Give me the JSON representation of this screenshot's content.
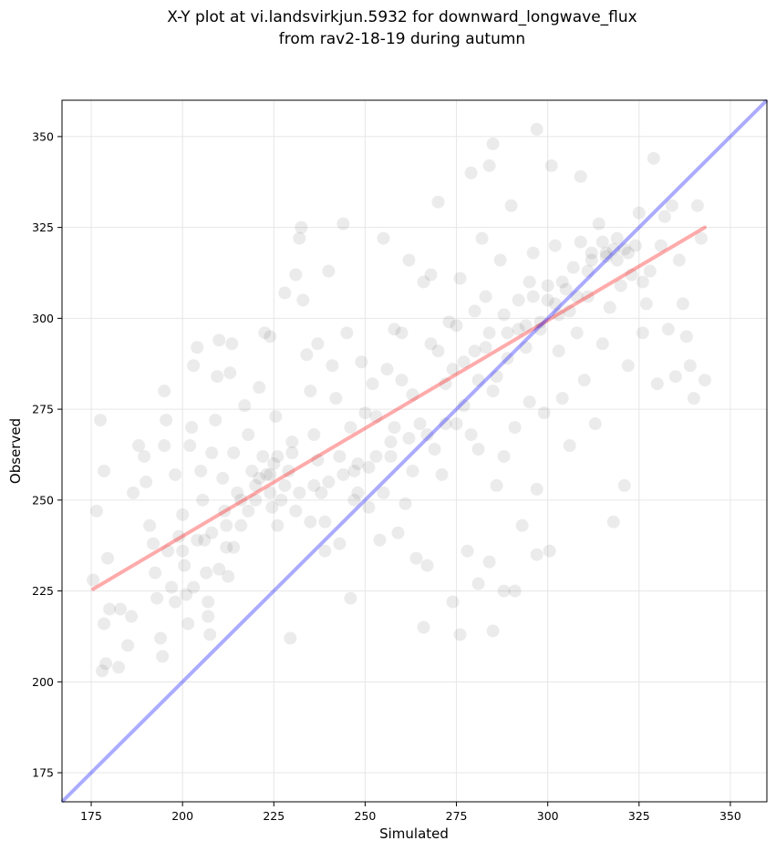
{
  "chart_data": {
    "type": "scatter",
    "title_lines": [
      "X-Y plot at vi.landsvirkjun.5932 for downward_longwave_flux",
      "from rav2-18-19 during autumn"
    ],
    "xlabel": "Simulated",
    "ylabel": "Observed",
    "xlim": [
      167,
      360
    ],
    "ylim": [
      167,
      360
    ],
    "xticks": [
      175,
      200,
      225,
      250,
      275,
      300,
      325,
      350
    ],
    "yticks": [
      175,
      200,
      225,
      250,
      275,
      300,
      325,
      350
    ],
    "grid": true,
    "point_color": "#000000",
    "point_alpha": 0.08,
    "identity_line": {
      "color": "#0000ff",
      "alpha": 0.33,
      "from": [
        167,
        167
      ],
      "to": [
        360,
        360
      ]
    },
    "regression_line": {
      "color": "#ff0000",
      "alpha": 0.33,
      "from": [
        175.5,
        225.5
      ],
      "to": [
        343,
        325
      ]
    },
    "points": [
      [
        175.5,
        228
      ],
      [
        176.5,
        247
      ],
      [
        177.5,
        272
      ],
      [
        178.5,
        258
      ],
      [
        178,
        203
      ],
      [
        179,
        205
      ],
      [
        178.5,
        216
      ],
      [
        179.5,
        234
      ],
      [
        180,
        220
      ],
      [
        182.5,
        204
      ],
      [
        183,
        220
      ],
      [
        185,
        210
      ],
      [
        186,
        218
      ],
      [
        186.5,
        252
      ],
      [
        188,
        265
      ],
      [
        189.5,
        262
      ],
      [
        190,
        255
      ],
      [
        191,
        243
      ],
      [
        192,
        238
      ],
      [
        192.5,
        230
      ],
      [
        193,
        223
      ],
      [
        194,
        212
      ],
      [
        194.5,
        207
      ],
      [
        195,
        265
      ],
      [
        195.5,
        272
      ],
      [
        195,
        280
      ],
      [
        196,
        236
      ],
      [
        197,
        226
      ],
      [
        198,
        257
      ],
      [
        199,
        240
      ],
      [
        200,
        246
      ],
      [
        200.5,
        232
      ],
      [
        201,
        224
      ],
      [
        201.5,
        216
      ],
      [
        202,
        265
      ],
      [
        202.5,
        270
      ],
      [
        203,
        287
      ],
      [
        204,
        292
      ],
      [
        205,
        258
      ],
      [
        205.5,
        250
      ],
      [
        206,
        239
      ],
      [
        206.5,
        230
      ],
      [
        207,
        222
      ],
      [
        207.5,
        213
      ],
      [
        208,
        263
      ],
      [
        209,
        272
      ],
      [
        209.5,
        284
      ],
      [
        210,
        294
      ],
      [
        211,
        256
      ],
      [
        211.5,
        247
      ],
      [
        212,
        237
      ],
      [
        212.5,
        229
      ],
      [
        213,
        285
      ],
      [
        213.5,
        293
      ],
      [
        214,
        263
      ],
      [
        215,
        252
      ],
      [
        216,
        243
      ],
      [
        217,
        276
      ],
      [
        218,
        268
      ],
      [
        219,
        258
      ],
      [
        220,
        250
      ],
      [
        221,
        281
      ],
      [
        222,
        262
      ],
      [
        222.5,
        296
      ],
      [
        223,
        257
      ],
      [
        224,
        252
      ],
      [
        224.5,
        248
      ],
      [
        225,
        260
      ],
      [
        225.5,
        273
      ],
      [
        226,
        243
      ],
      [
        227,
        250
      ],
      [
        228,
        307
      ],
      [
        229,
        258
      ],
      [
        229.5,
        212
      ],
      [
        230,
        266
      ],
      [
        231,
        312
      ],
      [
        232,
        322
      ],
      [
        232.5,
        325
      ],
      [
        233,
        305
      ],
      [
        234,
        290
      ],
      [
        235,
        280
      ],
      [
        236,
        268
      ],
      [
        237,
        261
      ],
      [
        238,
        252
      ],
      [
        239,
        244
      ],
      [
        240,
        313
      ],
      [
        241,
        287
      ],
      [
        242,
        278
      ],
      [
        243,
        262
      ],
      [
        244,
        326
      ],
      [
        245,
        296
      ],
      [
        246,
        270
      ],
      [
        247,
        258
      ],
      [
        248,
        252
      ],
      [
        249,
        288
      ],
      [
        250,
        274
      ],
      [
        251,
        259
      ],
      [
        252,
        282
      ],
      [
        253,
        273
      ],
      [
        254,
        239
      ],
      [
        255,
        322
      ],
      [
        256,
        286
      ],
      [
        257,
        262
      ],
      [
        258,
        297
      ],
      [
        259,
        241
      ],
      [
        260,
        283
      ],
      [
        261,
        249
      ],
      [
        262,
        316
      ],
      [
        263,
        279
      ],
      [
        264,
        234
      ],
      [
        265,
        271
      ],
      [
        266,
        310
      ],
      [
        267,
        232
      ],
      [
        268,
        293
      ],
      [
        269,
        264
      ],
      [
        270,
        332
      ],
      [
        271,
        257
      ],
      [
        272,
        282
      ],
      [
        273,
        299
      ],
      [
        274,
        222
      ],
      [
        275,
        271
      ],
      [
        276,
        311
      ],
      [
        277,
        288
      ],
      [
        278,
        236
      ],
      [
        279,
        268
      ],
      [
        280,
        302
      ],
      [
        281,
        264
      ],
      [
        282,
        322
      ],
      [
        283,
        292
      ],
      [
        284,
        233
      ],
      [
        285,
        280
      ],
      [
        286,
        254
      ],
      [
        287,
        316
      ],
      [
        288,
        262
      ],
      [
        289,
        296
      ],
      [
        290,
        331
      ],
      [
        291,
        270
      ],
      [
        292,
        305
      ],
      [
        293,
        243
      ],
      [
        294,
        298
      ],
      [
        295,
        277
      ],
      [
        296,
        318
      ],
      [
        297,
        253
      ],
      [
        298,
        297
      ],
      [
        299,
        274
      ],
      [
        300,
        305
      ],
      [
        300.5,
        236
      ],
      [
        301,
        342
      ],
      [
        302,
        320
      ],
      [
        303,
        291
      ],
      [
        304,
        278
      ],
      [
        305,
        308
      ],
      [
        306,
        265
      ],
      [
        307,
        314
      ],
      [
        308,
        296
      ],
      [
        309,
        321
      ],
      [
        310,
        283
      ],
      [
        311,
        306
      ],
      [
        312,
        318
      ],
      [
        313,
        271
      ],
      [
        314,
        326
      ],
      [
        315,
        293
      ],
      [
        316,
        317
      ],
      [
        317,
        303
      ],
      [
        318,
        244
      ],
      [
        319,
        322
      ],
      [
        320,
        309
      ],
      [
        321,
        254
      ],
      [
        322,
        287
      ],
      [
        323,
        312
      ],
      [
        324,
        320
      ],
      [
        325,
        329
      ],
      [
        326,
        296
      ],
      [
        327,
        304
      ],
      [
        328,
        313
      ],
      [
        329,
        344
      ],
      [
        330,
        282
      ],
      [
        331,
        320
      ],
      [
        332,
        328
      ],
      [
        333,
        297
      ],
      [
        334,
        331
      ],
      [
        335,
        284
      ],
      [
        336,
        316
      ],
      [
        337,
        304
      ],
      [
        338,
        295
      ],
      [
        339,
        287
      ],
      [
        340,
        278
      ],
      [
        341,
        331
      ],
      [
        342,
        322
      ],
      [
        343,
        283
      ],
      [
        285,
        348
      ],
      [
        279,
        340
      ],
      [
        297,
        352
      ],
      [
        284,
        342
      ],
      [
        309,
        339
      ],
      [
        266,
        215
      ],
      [
        276,
        213
      ],
      [
        285,
        214
      ],
      [
        281,
        227
      ],
      [
        288,
        225
      ],
      [
        291,
        225
      ],
      [
        297,
        235
      ],
      [
        246,
        223
      ],
      [
        224,
        295
      ],
      [
        230,
        263
      ],
      [
        237,
        293
      ],
      [
        260,
        296
      ],
      [
        268,
        312
      ],
      [
        274,
        286
      ],
      [
        283,
        306
      ],
      [
        295,
        310
      ],
      [
        303,
        301
      ],
      [
        306,
        302
      ],
      [
        311,
        313
      ],
      [
        316,
        318
      ],
      [
        319,
        316
      ],
      [
        321,
        319
      ],
      [
        302,
        304
      ],
      [
        298,
        299
      ],
      [
        294,
        292
      ],
      [
        289,
        289
      ],
      [
        286,
        284
      ],
      [
        281,
        283
      ],
      [
        277,
        276
      ],
      [
        272,
        271
      ],
      [
        267,
        268
      ],
      [
        262,
        267
      ],
      [
        257,
        266
      ],
      [
        253,
        262
      ],
      [
        248,
        260
      ],
      [
        244,
        257
      ],
      [
        240,
        255
      ],
      [
        236,
        254
      ],
      [
        232,
        252
      ],
      [
        228,
        254
      ],
      [
        224,
        257
      ],
      [
        220,
        254
      ],
      [
        216,
        250
      ],
      [
        212,
        243
      ],
      [
        208,
        241
      ],
      [
        204,
        239
      ],
      [
        200,
        236
      ],
      [
        198,
        222
      ],
      [
        203,
        226
      ],
      [
        207,
        218
      ],
      [
        210,
        231
      ],
      [
        214,
        237
      ],
      [
        218,
        247
      ],
      [
        221,
        256
      ],
      [
        226,
        262
      ],
      [
        231,
        247
      ],
      [
        235,
        244
      ],
      [
        239,
        236
      ],
      [
        243,
        238
      ],
      [
        247,
        250
      ],
      [
        251,
        248
      ],
      [
        255,
        252
      ],
      [
        258,
        270
      ],
      [
        263,
        258
      ],
      [
        270,
        291
      ],
      [
        275,
        298
      ],
      [
        280,
        291
      ],
      [
        284,
        296
      ],
      [
        288,
        301
      ],
      [
        292,
        297
      ],
      [
        296,
        306
      ],
      [
        300,
        309
      ],
      [
        304,
        310
      ],
      [
        308,
        306
      ],
      [
        312,
        316
      ],
      [
        315,
        321
      ],
      [
        318,
        319
      ],
      [
        322,
        318
      ],
      [
        326,
        310
      ]
    ]
  }
}
